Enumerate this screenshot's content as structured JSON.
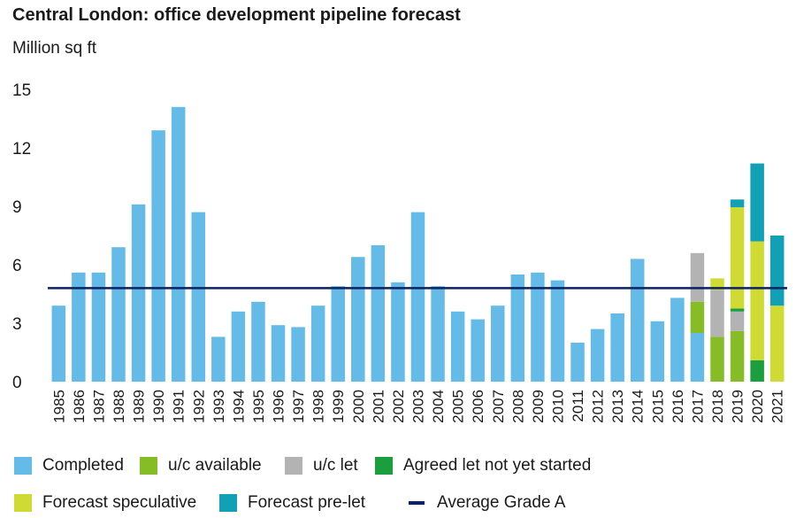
{
  "chart_data": {
    "type": "bar",
    "title": "Central London: office development pipeline forecast",
    "ylabel": "Million sq ft",
    "ylim": [
      0,
      15
    ],
    "yticks": [
      0,
      3,
      6,
      9,
      12,
      15
    ],
    "grid": false,
    "categories": [
      "1985",
      "1986",
      "1987",
      "1988",
      "1989",
      "1990",
      "1991",
      "1992",
      "1993",
      "1994",
      "1995",
      "1996",
      "1997",
      "1998",
      "1999",
      "2000",
      "2001",
      "2002",
      "2003",
      "2004",
      "2005",
      "2006",
      "2007",
      "2008",
      "2009",
      "2010",
      "2011",
      "2012",
      "2013",
      "2014",
      "2015",
      "2016",
      "2017",
      "2018",
      "2019",
      "2020",
      "2021"
    ],
    "series": [
      {
        "name": "Completed",
        "color": "#65BBE8",
        "values": [
          3.9,
          5.6,
          5.6,
          6.9,
          9.1,
          12.9,
          14.1,
          8.7,
          2.3,
          3.6,
          4.1,
          2.9,
          2.8,
          3.9,
          4.9,
          6.4,
          7.0,
          5.1,
          8.7,
          4.9,
          3.6,
          3.2,
          3.9,
          5.5,
          5.6,
          5.2,
          2.0,
          2.7,
          3.5,
          6.3,
          3.1,
          4.3,
          2.5,
          0,
          0,
          0,
          0
        ]
      },
      {
        "name": "u/c available",
        "color": "#86BC25",
        "values": [
          0,
          0,
          0,
          0,
          0,
          0,
          0,
          0,
          0,
          0,
          0,
          0,
          0,
          0,
          0,
          0,
          0,
          0,
          0,
          0,
          0,
          0,
          0,
          0,
          0,
          0,
          0,
          0,
          0,
          0,
          0,
          0,
          1.6,
          2.3,
          2.6,
          0,
          0
        ]
      },
      {
        "name": "u/c let",
        "color": "#B3B3B3",
        "values": [
          0,
          0,
          0,
          0,
          0,
          0,
          0,
          0,
          0,
          0,
          0,
          0,
          0,
          0,
          0,
          0,
          0,
          0,
          0,
          0,
          0,
          0,
          0,
          0,
          0,
          0,
          0,
          0,
          0,
          0,
          0,
          0,
          2.5,
          2.4,
          1.0,
          0,
          0
        ]
      },
      {
        "name": "Agreed let not yet started",
        "color": "#1B9E3E",
        "values": [
          0,
          0,
          0,
          0,
          0,
          0,
          0,
          0,
          0,
          0,
          0,
          0,
          0,
          0,
          0,
          0,
          0,
          0,
          0,
          0,
          0,
          0,
          0,
          0,
          0,
          0,
          0,
          0,
          0,
          0,
          0,
          0,
          0,
          0,
          0.15,
          1.1,
          0
        ]
      },
      {
        "name": "Forecast speculative",
        "color": "#CFDA33",
        "values": [
          0,
          0,
          0,
          0,
          0,
          0,
          0,
          0,
          0,
          0,
          0,
          0,
          0,
          0,
          0,
          0,
          0,
          0,
          0,
          0,
          0,
          0,
          0,
          0,
          0,
          0,
          0,
          0,
          0,
          0,
          0,
          0,
          0,
          0.6,
          5.2,
          6.1,
          3.9
        ]
      },
      {
        "name": "Forecast pre-let",
        "color": "#12A0B6",
        "values": [
          0,
          0,
          0,
          0,
          0,
          0,
          0,
          0,
          0,
          0,
          0,
          0,
          0,
          0,
          0,
          0,
          0,
          0,
          0,
          0,
          0,
          0,
          0,
          0,
          0,
          0,
          0,
          0,
          0,
          0,
          0,
          0,
          0,
          0,
          0.4,
          4.0,
          3.6
        ]
      }
    ],
    "reference_line": {
      "name": "Average Grade A",
      "value": 4.8,
      "color": "#0B2265"
    },
    "legend_placement": "bottom"
  }
}
